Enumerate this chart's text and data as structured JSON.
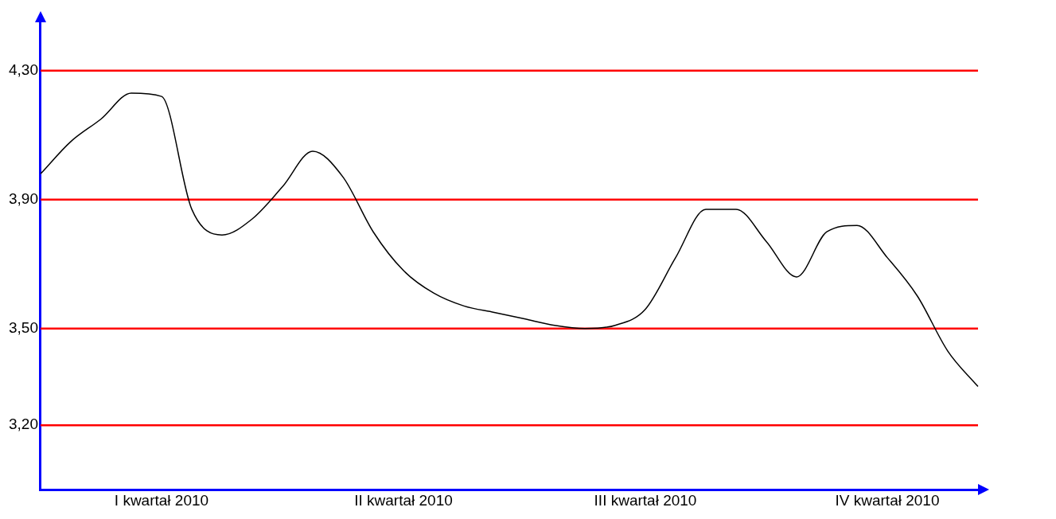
{
  "chart_data": {
    "type": "line",
    "categories": [
      null,
      null,
      null,
      null,
      "I kwartał 2010",
      null,
      null,
      null,
      null,
      null,
      null,
      null,
      "II kwartał 2010",
      null,
      null,
      null,
      null,
      null,
      null,
      null,
      "III kwartał 2010",
      null,
      null,
      null,
      null,
      null,
      null,
      null,
      "IV kwartał 2010",
      null,
      null,
      null
    ],
    "series": [
      {
        "color": "#000000",
        "values": [
          3.98,
          4.08,
          4.15,
          4.23,
          4.22,
          3.87,
          3.79,
          3.84,
          3.94,
          4.05,
          3.97,
          3.8,
          3.68,
          3.61,
          3.57,
          3.55,
          3.53,
          3.51,
          3.5,
          3.51,
          3.56,
          3.72,
          3.87,
          3.87,
          3.77,
          3.66,
          3.8,
          3.82,
          3.72,
          3.6,
          3.43,
          3.32
        ]
      }
    ],
    "ylim": [
      3.0,
      4.45
    ],
    "yticks": [
      {
        "value": 3.2,
        "label": "3,20"
      },
      {
        "value": 3.5,
        "label": "3,50"
      },
      {
        "value": 3.9,
        "label": "3,90"
      },
      {
        "value": 4.3,
        "label": "4,30"
      }
    ],
    "ref_lines": [
      {
        "axis": "y",
        "value": 3.2,
        "color": "#ff0000"
      },
      {
        "axis": "y",
        "value": 3.5,
        "color": "#ff0000"
      },
      {
        "axis": "y",
        "value": 3.9,
        "color": "#ff0000"
      },
      {
        "axis": "y",
        "value": 4.3,
        "color": "#ff0000"
      }
    ],
    "grid": false,
    "legend": false,
    "marker": "none",
    "line_style": "solid"
  }
}
